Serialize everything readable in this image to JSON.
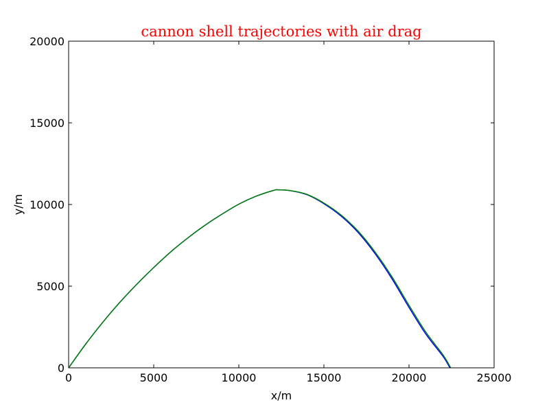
{
  "chart_data": {
    "type": "line",
    "title": "cannon shell trajectories with air drag",
    "title_color": "#ff0000",
    "xlabel": "x/m",
    "ylabel": "y/m",
    "xlim": [
      0,
      25000
    ],
    "ylim": [
      0,
      20000
    ],
    "xticks": [
      0,
      5000,
      10000,
      15000,
      20000,
      25000
    ],
    "yticks": [
      0,
      5000,
      10000,
      15000,
      20000
    ],
    "grid": false,
    "legend": "none",
    "series": [
      {
        "color": "#0000ff",
        "x": [
          0,
          1000,
          2000,
          3000,
          4000,
          5000,
          6000,
          7000,
          8000,
          9000,
          10000,
          11000,
          12000,
          12300,
          13000,
          14000,
          15000,
          16000,
          17000,
          18000,
          19000,
          20000,
          21000,
          22000,
          22400
        ],
        "y": [
          0,
          1450,
          2780,
          4000,
          5110,
          6140,
          7100,
          7950,
          8720,
          9400,
          10020,
          10500,
          10850,
          10900,
          10850,
          10600,
          10050,
          9300,
          8300,
          7000,
          5450,
          3700,
          2050,
          700,
          0
        ]
      },
      {
        "color": "#008000",
        "x": [
          0,
          1000,
          2000,
          3000,
          4000,
          5000,
          6000,
          7000,
          8000,
          9000,
          10000,
          11000,
          12000,
          12300,
          13000,
          14000,
          15000,
          16000,
          17000,
          18000,
          19000,
          20000,
          21000,
          22000,
          22450
        ],
        "y": [
          0,
          1450,
          2780,
          4000,
          5110,
          6140,
          7100,
          7950,
          8720,
          9400,
          10020,
          10500,
          10850,
          10900,
          10855,
          10620,
          10090,
          9360,
          8380,
          7100,
          5570,
          3830,
          2170,
          790,
          0
        ]
      }
    ]
  }
}
